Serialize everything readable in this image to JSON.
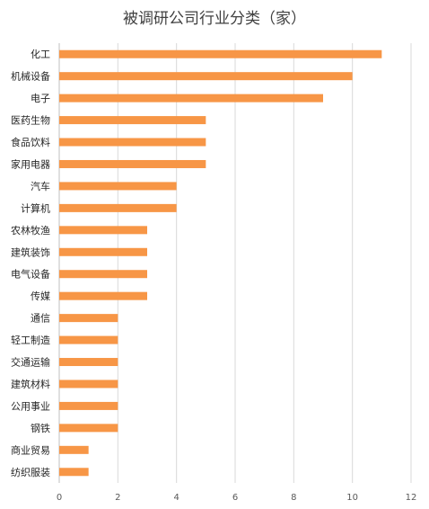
{
  "chart_data": {
    "type": "bar",
    "orientation": "horizontal",
    "title": "被调研公司行业分类（家）",
    "xlabel": "",
    "ylabel": "",
    "categories": [
      "化工",
      "机械设备",
      "电子",
      "医药生物",
      "食品饮料",
      "家用电器",
      "汽车",
      "计算机",
      "农林牧渔",
      "建筑装饰",
      "电气设备",
      "传媒",
      "通信",
      "轻工制造",
      "交通运输",
      "建筑材料",
      "公用事业",
      "钢铁",
      "商业贸易",
      "纺织服装"
    ],
    "values": [
      11,
      10,
      9,
      5,
      5,
      5,
      4,
      4,
      3,
      3,
      3,
      3,
      2,
      2,
      2,
      2,
      2,
      2,
      1,
      1
    ],
    "xlim": [
      0,
      12
    ],
    "xticks": [
      0,
      2,
      4,
      6,
      8,
      10,
      12
    ],
    "grid": true,
    "legend": "none",
    "bar_color": "#f79646"
  }
}
